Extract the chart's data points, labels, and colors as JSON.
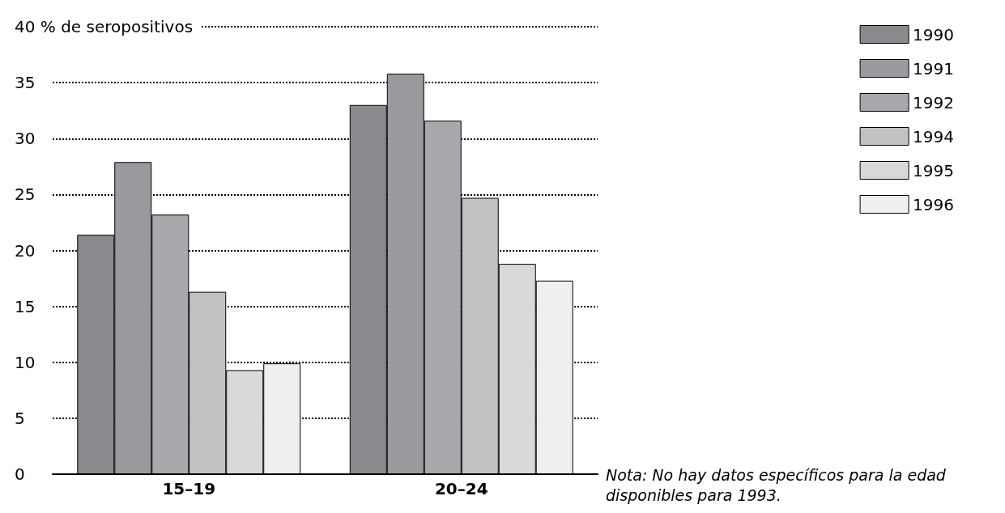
{
  "chart_data": {
    "type": "bar",
    "categories": [
      "15–19",
      "20–24"
    ],
    "series": [
      {
        "name": "1990",
        "color": "#8a8a8e",
        "values": [
          21.4,
          33.0
        ]
      },
      {
        "name": "1991",
        "color": "#9a9a9e",
        "values": [
          27.9,
          35.8
        ]
      },
      {
        "name": "1992",
        "color": "#a9a9ad",
        "values": [
          23.2,
          31.6
        ]
      },
      {
        "name": "1994",
        "color": "#c2c2c4",
        "values": [
          16.3,
          24.7
        ]
      },
      {
        "name": "1995",
        "color": "#d9d9da",
        "values": [
          9.3,
          18.8
        ]
      },
      {
        "name": "1996",
        "color": "#efefef",
        "values": [
          9.9,
          17.3
        ]
      }
    ],
    "ylim": [
      0,
      40
    ],
    "yticks": [
      0,
      5,
      10,
      15,
      20,
      25,
      30,
      35,
      {
        "value": 40,
        "label": "40 % de seropositivos"
      }
    ],
    "grid": "y",
    "legend": "top right",
    "annotations": [
      "Nota: No hay datos específicos para la edad disponibles para 1993."
    ]
  }
}
